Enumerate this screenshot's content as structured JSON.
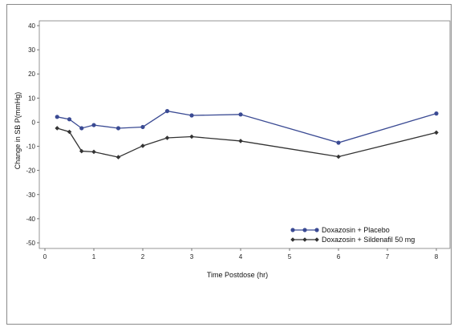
{
  "chart_data": {
    "type": "line",
    "xlabel": "Time Postdose (hr)",
    "ylabel": "Change in SB P(mmHg)",
    "xlim": [
      0,
      8
    ],
    "ylim": [
      -50,
      40
    ],
    "xticks": [
      "0",
      "1",
      "2",
      "3",
      "4",
      "5",
      "6",
      "7",
      "8"
    ],
    "yticks": [
      "40",
      "30",
      "20",
      "10",
      "0",
      "-10",
      "-20",
      "-30",
      "-40",
      "-50"
    ],
    "legend_position": "bottom-right",
    "grid": false,
    "series": [
      {
        "name": "Doxazosin + Placebo",
        "color": "#3a4a93",
        "marker": "circle",
        "x": [
          0.25,
          0.5,
          0.75,
          1,
          1.5,
          2,
          2.5,
          3,
          4,
          6,
          8
        ],
        "y": [
          2.2,
          1.2,
          -2.5,
          -1.2,
          -2.5,
          -2.0,
          4.6,
          2.8,
          3.2,
          -8.5,
          3.6
        ]
      },
      {
        "name": "Doxazosin + Sildenafil 50 mg",
        "color": "#333333",
        "marker": "diamond",
        "x": [
          0.25,
          0.5,
          0.75,
          1,
          1.5,
          2,
          2.5,
          3,
          4,
          6,
          8
        ],
        "y": [
          -2.5,
          -4.0,
          -12.0,
          -12.3,
          -14.5,
          -9.8,
          -6.5,
          -6.0,
          -7.8,
          -14.3,
          -4.3
        ]
      }
    ]
  }
}
